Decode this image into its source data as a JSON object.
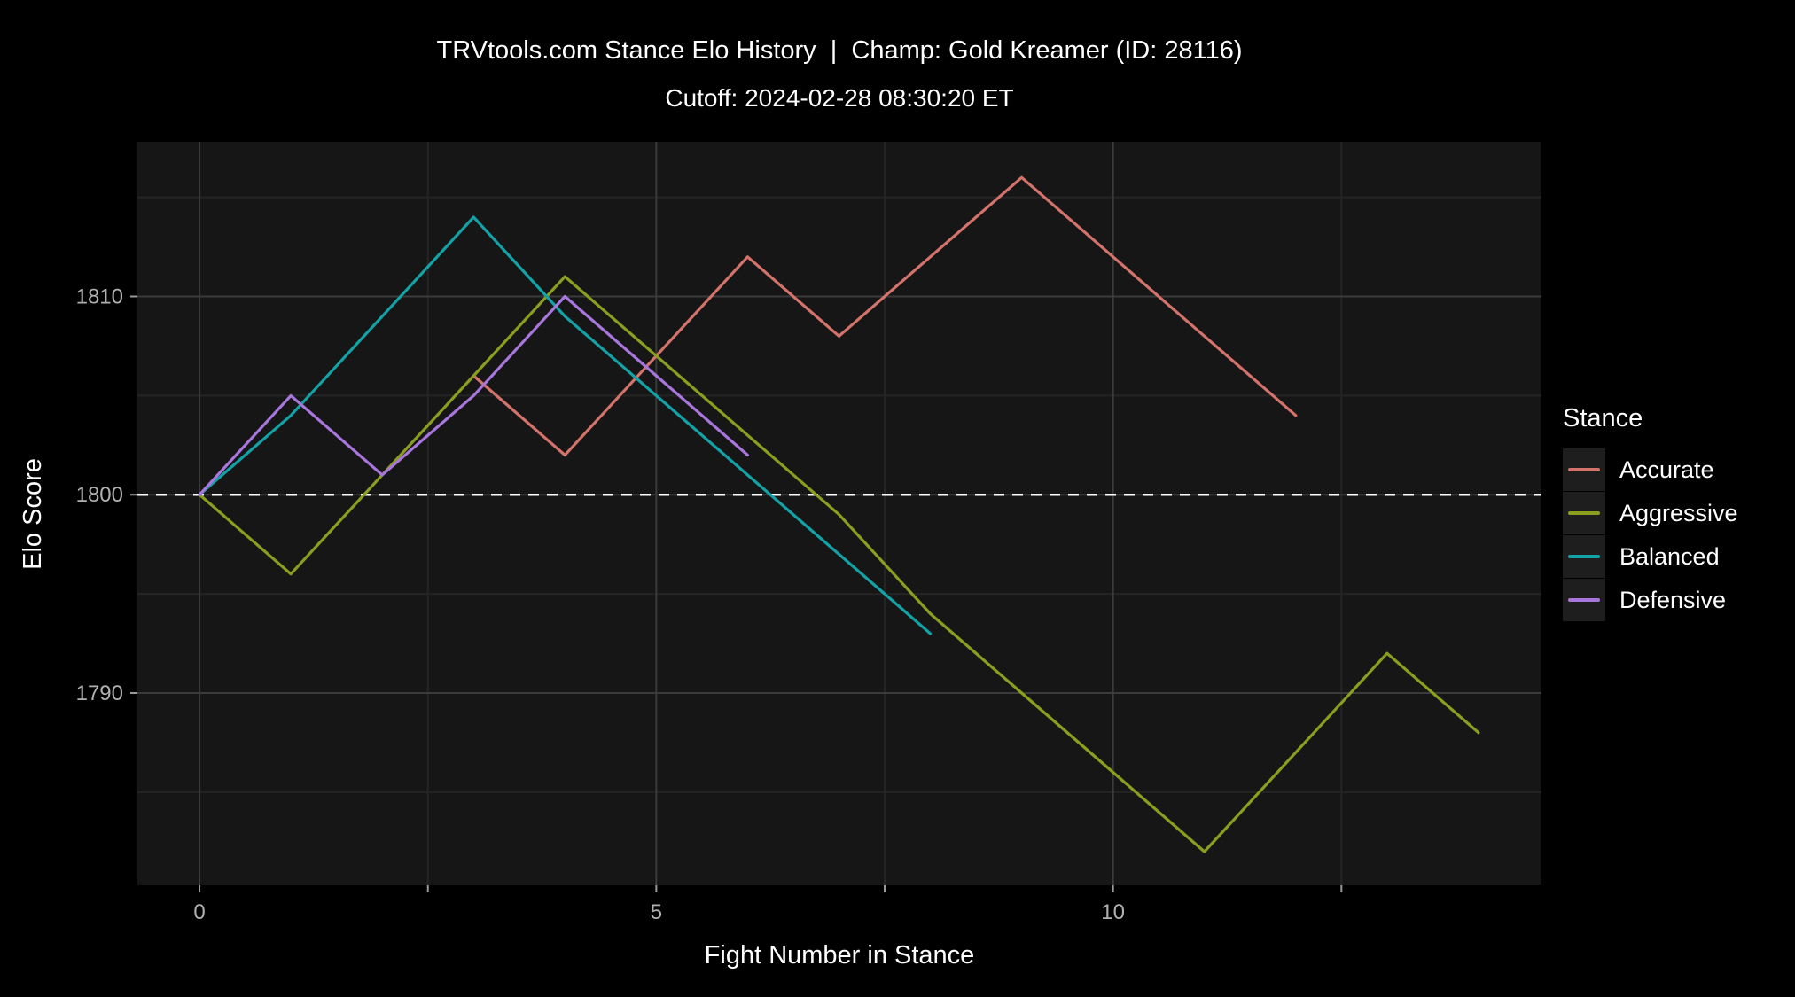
{
  "title": "TRVtools.com Stance Elo History  |  Champ: Gold Kreamer (ID: 28116)",
  "subtitle": "Cutoff: 2024-02-28 08:30:20 ET",
  "chart_data": {
    "type": "line",
    "title": "TRVtools.com Stance Elo History  |  Champ: Gold Kreamer (ID: 28116)",
    "subtitle": "Cutoff: 2024-02-28 08:30:20 ET",
    "xlabel": "Fight Number in Stance",
    "ylabel": "Elo Score",
    "x_domain": [
      -0.68,
      14.69
    ],
    "y_domain": [
      1780.3,
      1817.8
    ],
    "x_major_ticks": [
      0,
      5,
      10
    ],
    "x_minor_ticks": [
      2.5,
      7.5,
      12.5
    ],
    "y_major_ticks": [
      1790,
      1800,
      1810
    ],
    "y_minor_gridlines": [
      1785,
      1795,
      1805,
      1815
    ],
    "grid": true,
    "legend_position": "right",
    "legend_title": "Stance",
    "reference_line": {
      "y": 1800,
      "style": "dashed",
      "color": "#ffffff"
    },
    "panel_background": "#161616",
    "grid_major_color": "#3b3b3b",
    "grid_minor_color": "#252525",
    "tick_color": "#9a9a9a",
    "series": [
      {
        "name": "Accurate",
        "color": "#D4736B",
        "points": [
          [
            3,
            1806
          ],
          [
            4,
            1802
          ],
          [
            5,
            1807
          ],
          [
            6,
            1812
          ],
          [
            7,
            1808
          ],
          [
            8,
            1812
          ],
          [
            9,
            1816
          ],
          [
            10,
            1812
          ],
          [
            11,
            1808
          ],
          [
            12,
            1804
          ]
        ]
      },
      {
        "name": "Aggressive",
        "color": "#8C9E1E",
        "points": [
          [
            0,
            1800
          ],
          [
            1,
            1796
          ],
          [
            2,
            1801
          ],
          [
            3,
            1806
          ],
          [
            4,
            1811
          ],
          [
            5,
            1807
          ],
          [
            6,
            1803
          ],
          [
            7,
            1799
          ],
          [
            8,
            1794
          ],
          [
            9,
            1790
          ],
          [
            10,
            1786
          ],
          [
            11,
            1782
          ],
          [
            12,
            1787
          ],
          [
            13,
            1792
          ],
          [
            14,
            1788
          ]
        ]
      },
      {
        "name": "Balanced",
        "color": "#12A2A7",
        "points": [
          [
            0,
            1800
          ],
          [
            1,
            1804
          ],
          [
            2,
            1809
          ],
          [
            3,
            1814
          ],
          [
            4,
            1809
          ],
          [
            5,
            1805
          ],
          [
            6,
            1801
          ],
          [
            7,
            1797
          ],
          [
            8,
            1793
          ]
        ]
      },
      {
        "name": "Defensive",
        "color": "#A876DD",
        "points": [
          [
            0,
            1800
          ],
          [
            1,
            1805
          ],
          [
            2,
            1801
          ],
          [
            3,
            1805
          ],
          [
            4,
            1810
          ],
          [
            5,
            1806
          ],
          [
            6,
            1802
          ]
        ]
      }
    ]
  }
}
